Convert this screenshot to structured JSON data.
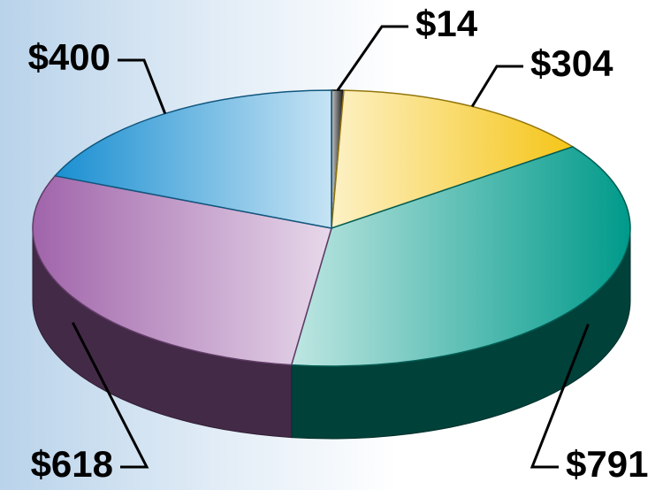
{
  "chart_data": {
    "type": "pie3d",
    "categories": [
      null,
      null,
      null,
      null,
      null
    ],
    "values": [
      14,
      304,
      791,
      618,
      400
    ],
    "value_labels": [
      "$14",
      "$304",
      "$791",
      "$618",
      "$400"
    ],
    "colors": [
      "#111111",
      "#f5c518",
      "#009a8a",
      "#a064aa",
      "#1a8fd1"
    ]
  }
}
